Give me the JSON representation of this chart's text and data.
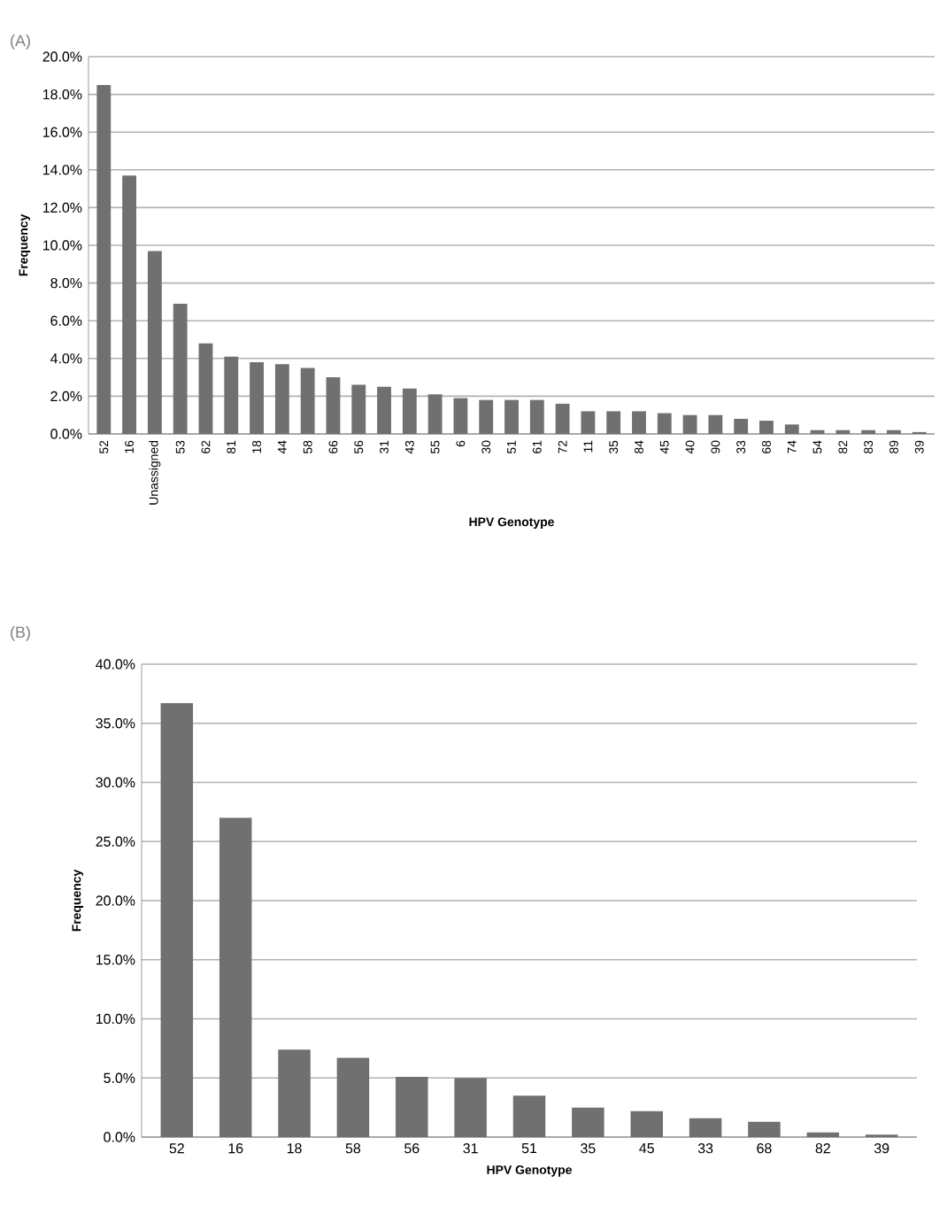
{
  "chart_data": [
    {
      "type": "bar",
      "title": "(A)",
      "xlabel": "HPV Genotype",
      "ylabel": "Frequency",
      "color": "#707070",
      "grid": "y",
      "categories": [
        "52",
        "16",
        "Unassigned",
        "53",
        "62",
        "81",
        "18",
        "44",
        "58",
        "66",
        "56",
        "31",
        "43",
        "55",
        "6",
        "30",
        "51",
        "61",
        "72",
        "11",
        "35",
        "84",
        "45",
        "40",
        "90",
        "33",
        "68",
        "74",
        "54",
        "82",
        "83",
        "89",
        "39"
      ],
      "values": [
        18.5,
        13.7,
        9.7,
        6.9,
        4.8,
        4.1,
        3.8,
        3.7,
        3.5,
        3.0,
        2.6,
        2.5,
        2.4,
        2.1,
        1.9,
        1.8,
        1.8,
        1.8,
        1.6,
        1.2,
        1.2,
        1.2,
        1.1,
        1.0,
        1.0,
        0.8,
        0.7,
        0.5,
        0.2,
        0.2,
        0.2,
        0.2,
        0.1
      ],
      "ylim": [
        0,
        20
      ],
      "yticks": [
        {
          "value": 0,
          "label": "0.0%"
        },
        {
          "value": 2,
          "label": "2.0%"
        },
        {
          "value": 4,
          "label": "4.0%"
        },
        {
          "value": 6,
          "label": "6.0%"
        },
        {
          "value": 8,
          "label": "8.0%"
        },
        {
          "value": 10,
          "label": "10.0%"
        },
        {
          "value": 12,
          "label": "12.0%"
        },
        {
          "value": 14,
          "label": "14.0%"
        },
        {
          "value": 16,
          "label": "16.0%"
        },
        {
          "value": 18,
          "label": "18.0%"
        },
        {
          "value": 20,
          "label": "20.0%"
        }
      ]
    },
    {
      "type": "bar",
      "title": "(B)",
      "xlabel": "HPV Genotype",
      "ylabel": "Frequency",
      "color": "#707070",
      "grid": "y",
      "categories": [
        "52",
        "16",
        "18",
        "58",
        "56",
        "31",
        "51",
        "35",
        "45",
        "33",
        "68",
        "82",
        "39"
      ],
      "values": [
        36.7,
        27.0,
        7.4,
        6.7,
        5.1,
        5.0,
        3.5,
        2.5,
        2.2,
        1.6,
        1.3,
        0.4,
        0.2
      ],
      "ylim": [
        0,
        40
      ],
      "yticks": [
        {
          "value": 0,
          "label": "0.0%"
        },
        {
          "value": 5,
          "label": "5.0%"
        },
        {
          "value": 10,
          "label": "10.0%"
        },
        {
          "value": 15,
          "label": "15.0%"
        },
        {
          "value": 20,
          "label": "20.0%"
        },
        {
          "value": 25,
          "label": "25.0%"
        },
        {
          "value": 30,
          "label": "30.0%"
        },
        {
          "value": 35,
          "label": "35.0%"
        },
        {
          "value": 40,
          "label": "40.0%"
        }
      ]
    }
  ]
}
